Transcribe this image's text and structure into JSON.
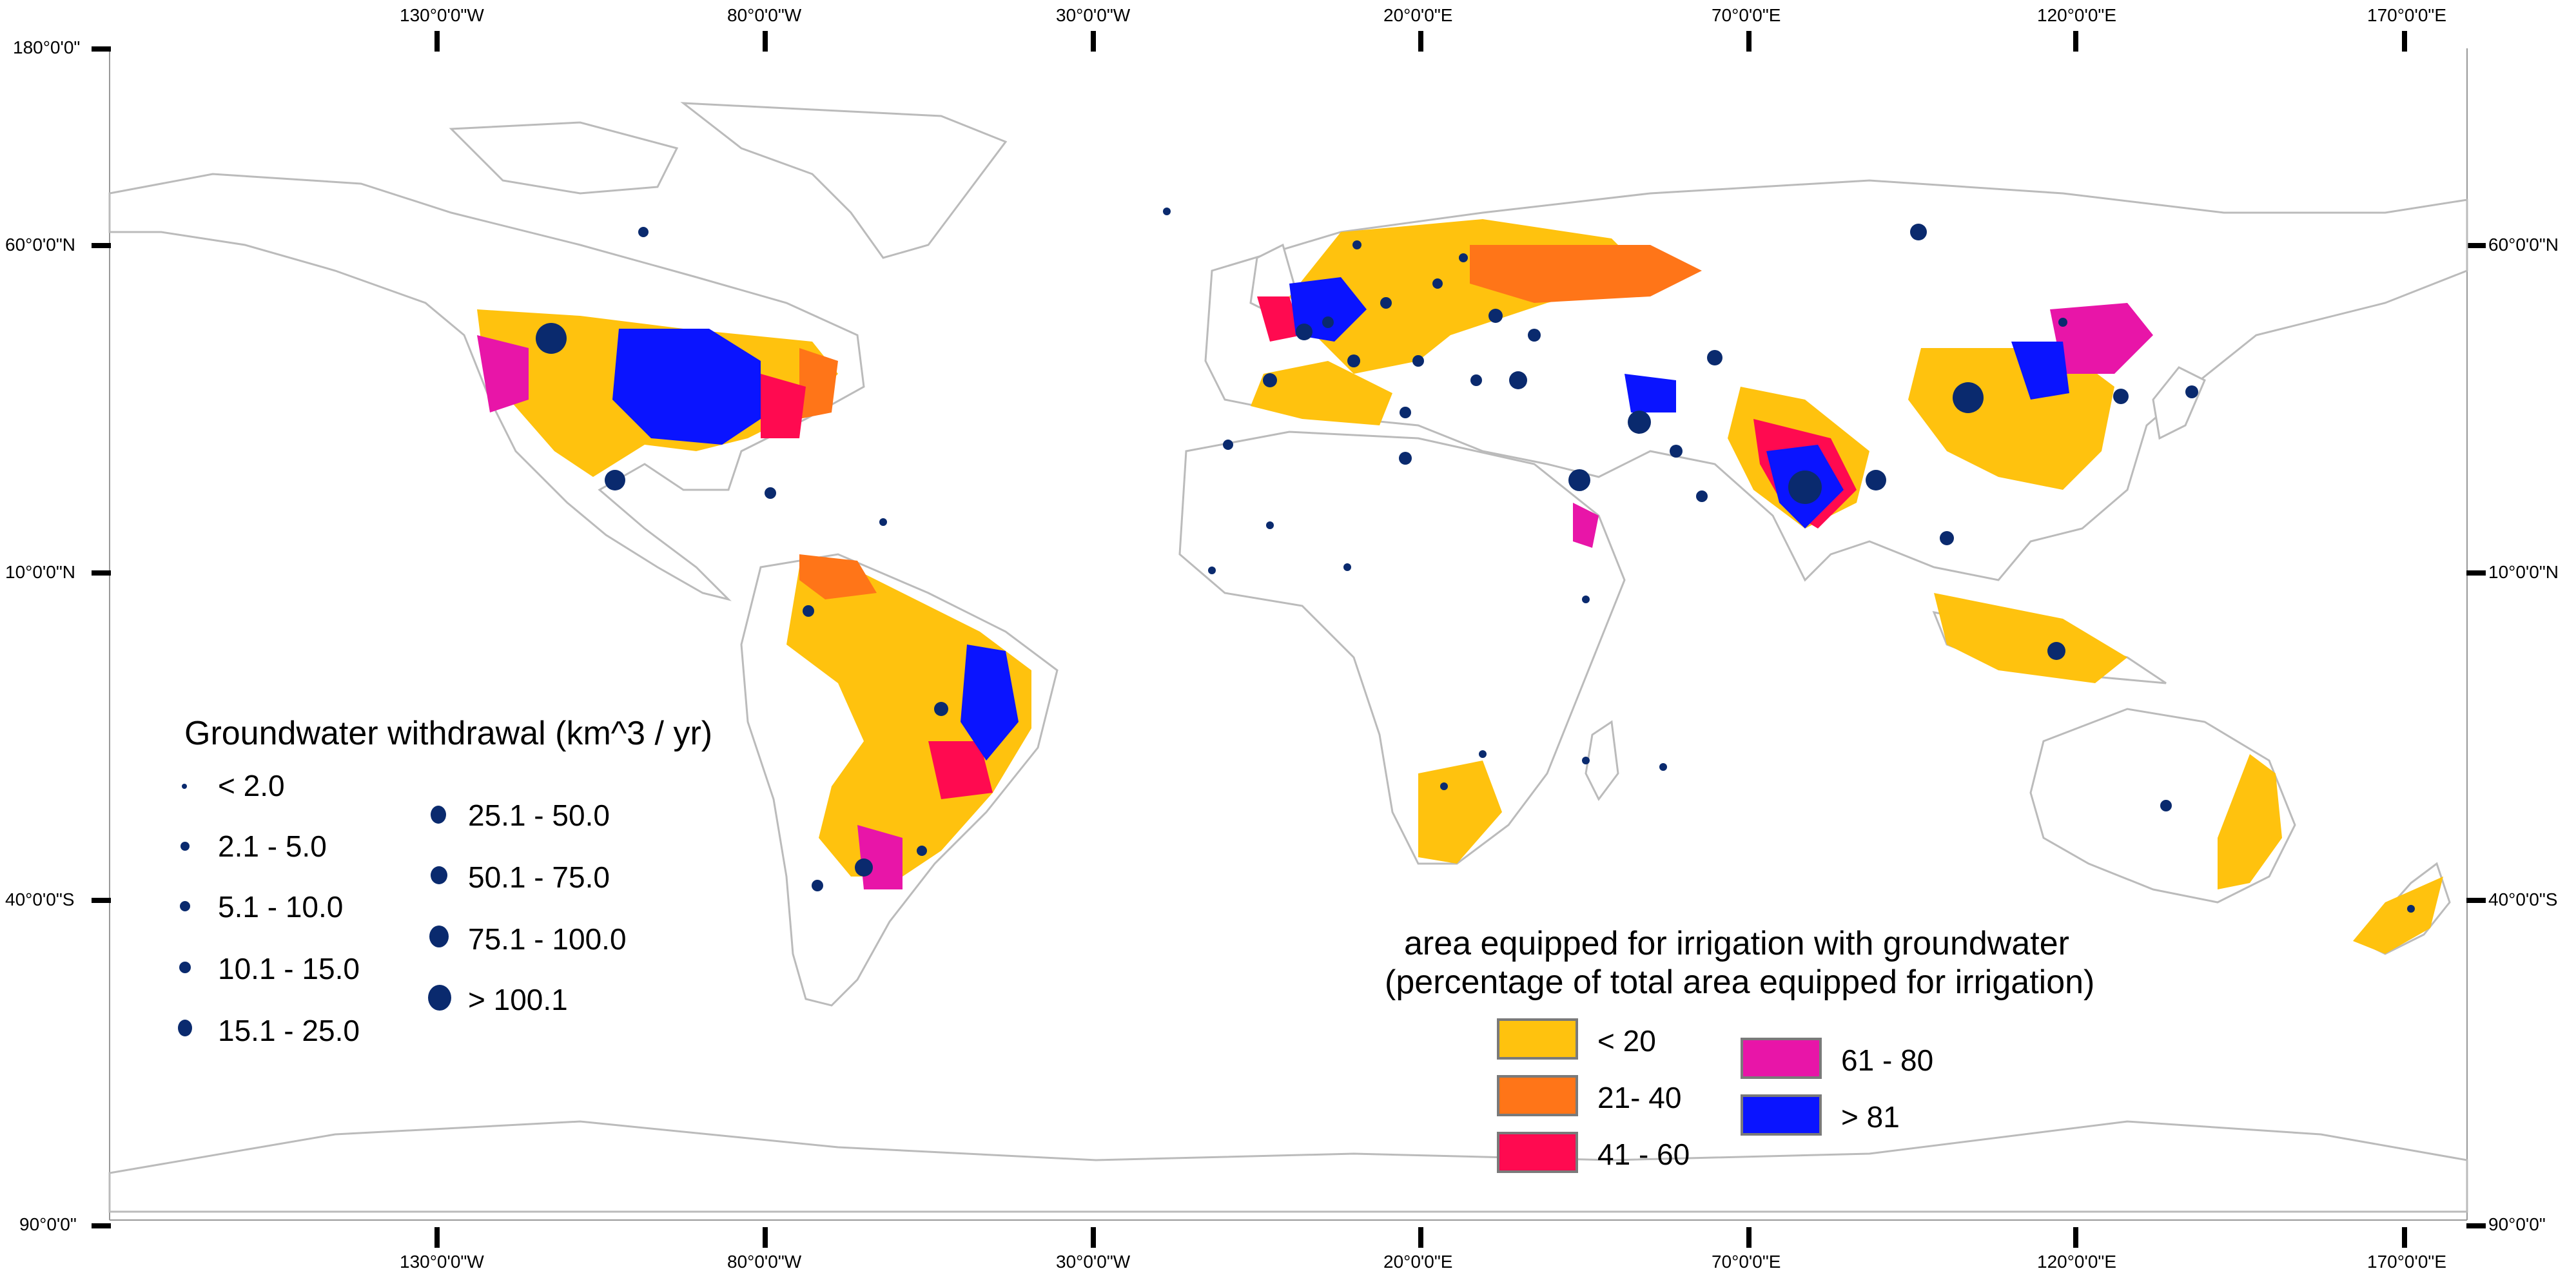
{
  "axes": {
    "top_labels": [
      "130°0'0\"W",
      "80°0'0\"W",
      "30°0'0\"W",
      "20°0'0\"E",
      "70°0'0\"E",
      "120°0'0\"E",
      "170°0'0\"E"
    ],
    "bottom_labels": [
      "130°0'0\"W",
      "80°0'0\"W",
      "30°0'0\"W",
      "20°0'0\"E",
      "70°0'0\"E",
      "120°0'0\"E",
      "170°0'0\"E"
    ],
    "left_labels": [
      "180°0'0\"",
      "60°0'0\"N",
      "10°0'0\"N",
      "40°0'0\"S",
      "90°0'0\""
    ],
    "right_labels": [
      "60°0'0\"N",
      "10°0'0\"N",
      "40°0'0\"S",
      "90°0'0\""
    ]
  },
  "groundwater_legend": {
    "title": "Groundwater withdrawal (km^3 / yr)",
    "classes": [
      "< 2.0",
      "2.1 - 5.0",
      "5.1 - 10.0",
      "10.1 - 15.0",
      "15.1 - 25.0",
      "25.1 - 50.0",
      "50.1 - 75.0",
      "75.1 - 100.0",
      "> 100.1"
    ],
    "dot_color": "#0a2a6e"
  },
  "irrigation_legend": {
    "title_line1": "area equipped for irrigation with groundwater",
    "title_line2": "(percentage of total area equipped for irrigation)",
    "classes": [
      {
        "label": "< 20",
        "color": "#FFC20E"
      },
      {
        "label": "21- 40",
        "color": "#FF7518"
      },
      {
        "label": "41 - 60",
        "color": "#FF0A50"
      },
      {
        "label": "61 - 80",
        "color": "#E815A8"
      },
      {
        "label": "> 81",
        "color": "#0A14FF"
      }
    ]
  },
  "colors": {
    "land_outline": "#bbbbbb",
    "background": "#ffffff"
  }
}
